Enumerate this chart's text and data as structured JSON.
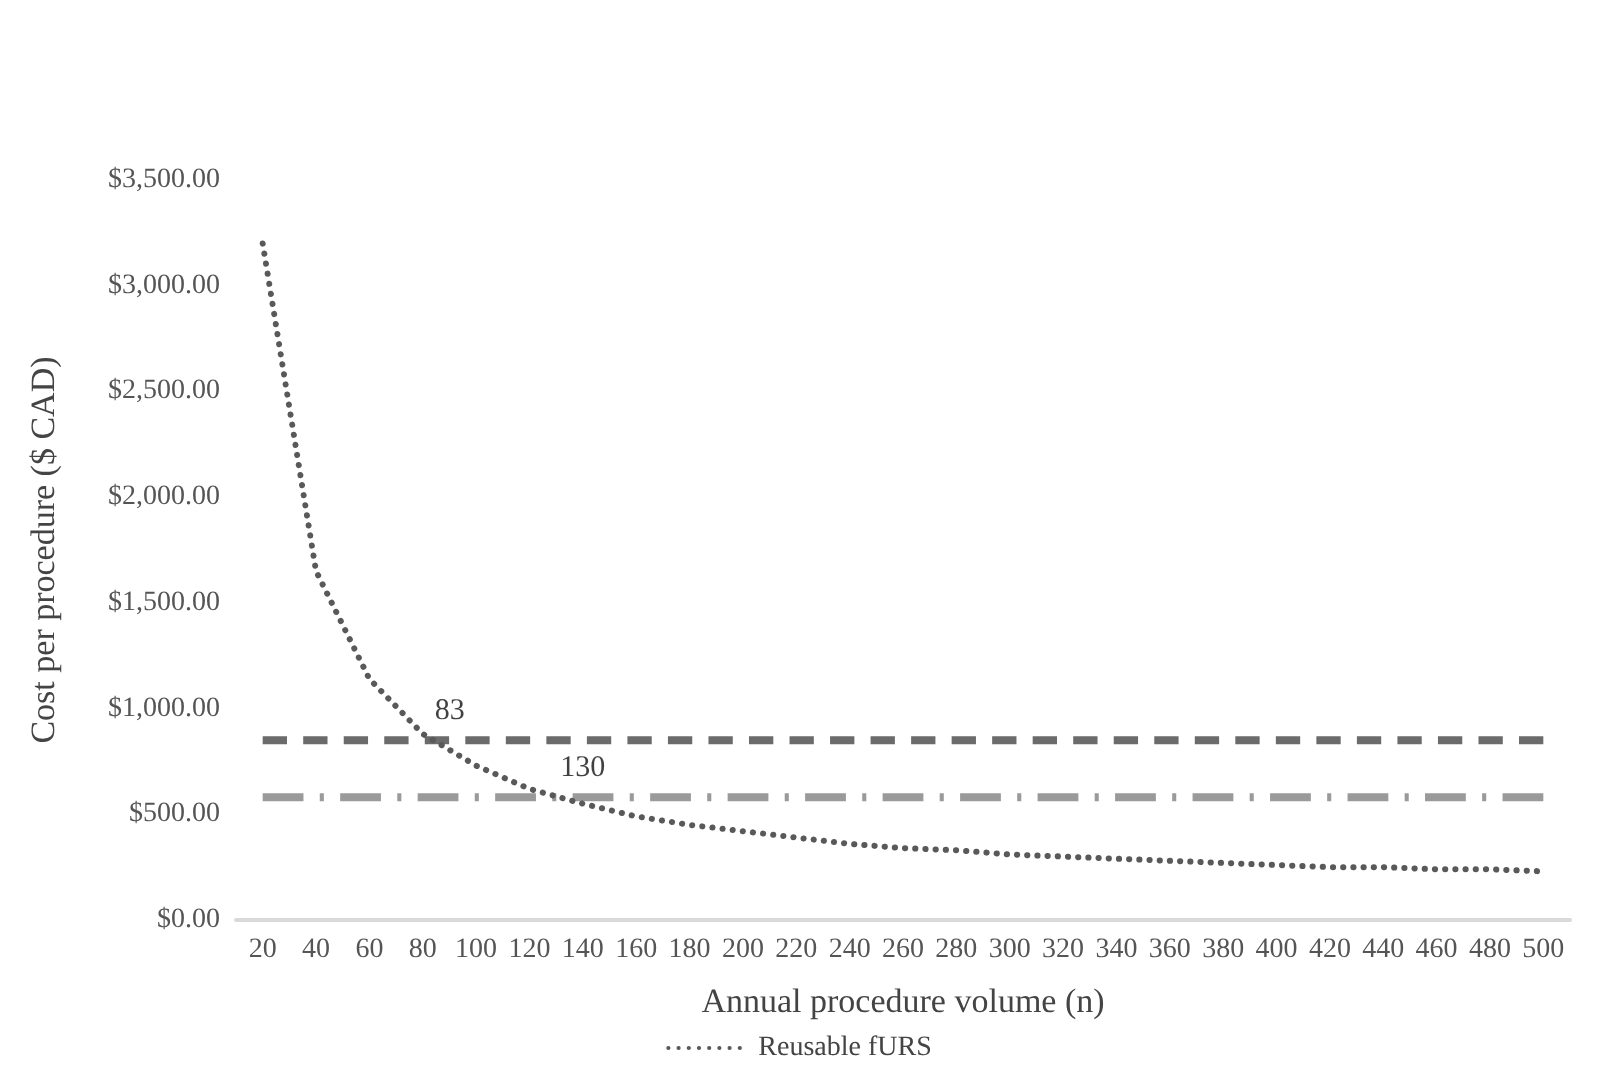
{
  "chart_data": {
    "type": "line",
    "xlabel": "Annual procedure volume (n)",
    "ylabel": "Cost per procedure ($ CAD)",
    "x": [
      20,
      40,
      60,
      80,
      100,
      120,
      140,
      160,
      180,
      200,
      220,
      240,
      260,
      280,
      300,
      320,
      340,
      360,
      380,
      400,
      420,
      440,
      460,
      480,
      500
    ],
    "series": [
      {
        "name": "Reusable fURS",
        "color": "#595959",
        "line_style": "dotted",
        "values": [
          3200,
          1650,
          1140,
          880,
          730,
          620,
          550,
          490,
          450,
          420,
          390,
          360,
          340,
          330,
          310,
          300,
          290,
          280,
          270,
          260,
          250,
          250,
          240,
          240,
          230
        ]
      },
      {
        "color": "#6b6b6b",
        "line_style": "dashed",
        "values": [
          850,
          850,
          850,
          850,
          850,
          850,
          850,
          850,
          850,
          850,
          850,
          850,
          850,
          850,
          850,
          850,
          850,
          850,
          850,
          850,
          850,
          850,
          850,
          850,
          850
        ]
      },
      {
        "color": "#9a9a9a",
        "line_style": "dashdot",
        "values": [
          580,
          580,
          580,
          580,
          580,
          580,
          580,
          580,
          580,
          580,
          580,
          580,
          580,
          580,
          580,
          580,
          580,
          580,
          580,
          580,
          580,
          580,
          580,
          580,
          580
        ]
      }
    ],
    "xlim": [
      10,
      510
    ],
    "xticks": [
      20,
      40,
      60,
      80,
      100,
      120,
      140,
      160,
      180,
      200,
      220,
      240,
      260,
      280,
      300,
      320,
      340,
      360,
      380,
      400,
      420,
      440,
      460,
      480,
      500
    ],
    "ylim": [
      0,
      3500
    ],
    "yticks": [
      {
        "value": 0,
        "label": "$0.00"
      },
      {
        "value": 500,
        "label": "$500.00"
      },
      {
        "value": 1000,
        "label": "$1,000.00"
      },
      {
        "value": 1500,
        "label": "$1,500.00"
      },
      {
        "value": 2000,
        "label": "$2,000.00"
      },
      {
        "value": 2500,
        "label": "$2,500.00"
      },
      {
        "value": 3000,
        "label": "$3,000.00"
      },
      {
        "value": 3500,
        "label": "$3,500.00"
      }
    ],
    "annotations": [
      {
        "text": "83",
        "x": 83,
        "y": 850
      },
      {
        "text": "130",
        "x": 130,
        "y": 580
      }
    ],
    "grid": false,
    "legend": "bottom",
    "marker": "none"
  }
}
